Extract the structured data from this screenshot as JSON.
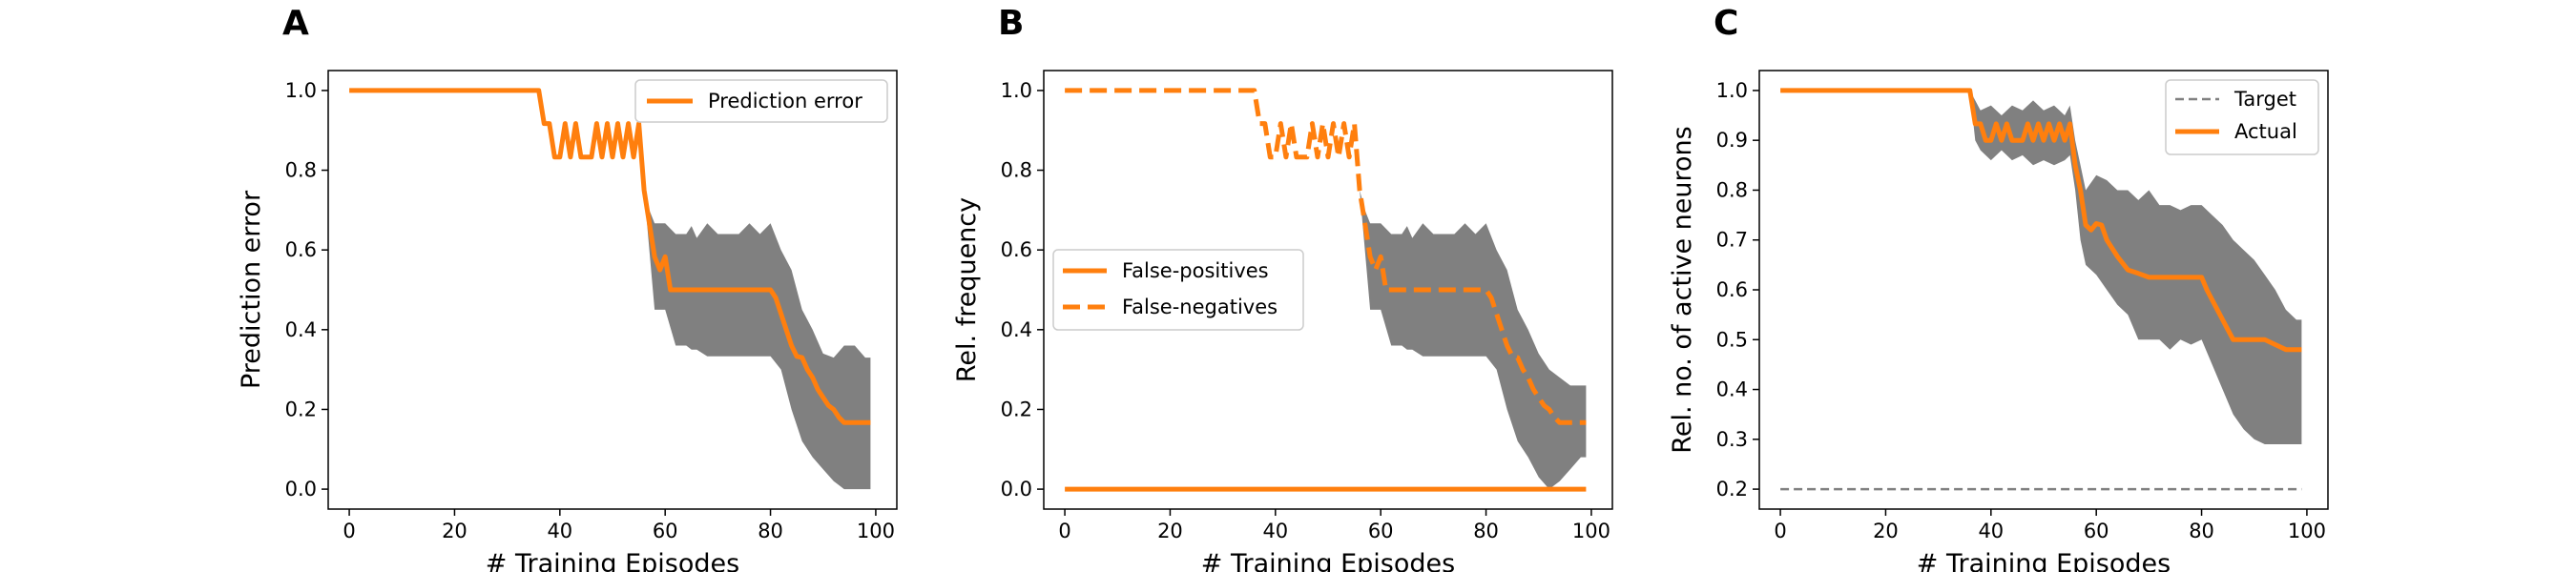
{
  "colors": {
    "orange": "#ff7f0e",
    "band": "#808080",
    "target": "#808080"
  },
  "chart_data": [
    {
      "type": "line",
      "panel": "A",
      "xlabel": "# Training Episodes",
      "ylabel": "Prediction error",
      "xlim": [
        -4,
        104
      ],
      "ylim": [
        -0.05,
        1.05
      ],
      "xticks": [
        0,
        20,
        40,
        60,
        80,
        100
      ],
      "yticks": [
        "0.0",
        "0.2",
        "0.4",
        "0.6",
        "0.8",
        "1.0"
      ],
      "legend_position": "top-right",
      "series": [
        {
          "name": "Prediction error",
          "style": "solid",
          "color": "#ff7f0e",
          "x": [
            0,
            36,
            37,
            38,
            39,
            40,
            41,
            42,
            43,
            44,
            45,
            46,
            47,
            48,
            49,
            50,
            51,
            52,
            53,
            54,
            55,
            56,
            57,
            58,
            59,
            60,
            61,
            80,
            81,
            82,
            83,
            84,
            85,
            86,
            87,
            88,
            89,
            90,
            91,
            92,
            93,
            94,
            95,
            96,
            97,
            98,
            99
          ],
          "y": [
            1.0,
            1.0,
            0.917,
            0.917,
            0.833,
            0.833,
            0.917,
            0.833,
            0.917,
            0.833,
            0.833,
            0.833,
            0.917,
            0.833,
            0.917,
            0.833,
            0.917,
            0.833,
            0.917,
            0.833,
            0.917,
            0.75,
            0.667,
            0.583,
            0.55,
            0.583,
            0.5,
            0.5,
            0.48,
            0.44,
            0.4,
            0.36,
            0.333,
            0.33,
            0.3,
            0.28,
            0.25,
            0.23,
            0.21,
            0.2,
            0.18,
            0.167,
            0.167,
            0.167,
            0.167,
            0.167,
            0.167
          ]
        }
      ],
      "band": {
        "x": [
          55,
          56,
          57,
          58,
          60,
          62,
          64,
          65,
          66,
          68,
          70,
          72,
          74,
          76,
          78,
          80,
          82,
          84,
          86,
          88,
          90,
          92,
          94,
          96,
          98,
          99
        ],
        "upper": [
          0.917,
          0.75,
          0.7,
          0.667,
          0.667,
          0.64,
          0.64,
          0.66,
          0.63,
          0.667,
          0.64,
          0.64,
          0.64,
          0.667,
          0.64,
          0.667,
          0.6,
          0.55,
          0.45,
          0.4,
          0.34,
          0.33,
          0.36,
          0.36,
          0.33,
          0.33
        ],
        "lower": [
          0.917,
          0.75,
          0.6,
          0.45,
          0.45,
          0.36,
          0.36,
          0.35,
          0.35,
          0.333,
          0.333,
          0.333,
          0.333,
          0.333,
          0.333,
          0.333,
          0.3,
          0.2,
          0.12,
          0.08,
          0.05,
          0.02,
          0.0,
          0.0,
          0.0,
          0.0
        ]
      }
    },
    {
      "type": "line",
      "panel": "B",
      "xlabel": "# Training Episodes",
      "ylabel": "Rel. frequency",
      "xlim": [
        -4,
        104
      ],
      "ylim": [
        -0.05,
        1.05
      ],
      "xticks": [
        0,
        20,
        40,
        60,
        80,
        100
      ],
      "yticks": [
        "0.0",
        "0.2",
        "0.4",
        "0.6",
        "0.8",
        "1.0"
      ],
      "legend_position": "center-left",
      "series": [
        {
          "name": "False-positives",
          "style": "solid",
          "color": "#ff7f0e",
          "x": [
            0,
            99
          ],
          "y": [
            0.0,
            0.0
          ]
        },
        {
          "name": "False-negatives",
          "style": "dashed",
          "color": "#ff7f0e",
          "x": [
            0,
            36,
            37,
            38,
            39,
            40,
            41,
            42,
            43,
            44,
            45,
            46,
            47,
            48,
            49,
            50,
            51,
            52,
            53,
            54,
            55,
            56,
            57,
            58,
            59,
            60,
            61,
            80,
            81,
            82,
            83,
            84,
            85,
            86,
            87,
            88,
            89,
            90,
            91,
            92,
            93,
            94,
            95,
            96,
            97,
            98,
            99
          ],
          "y": [
            1.0,
            1.0,
            0.917,
            0.917,
            0.833,
            0.833,
            0.917,
            0.833,
            0.917,
            0.833,
            0.833,
            0.833,
            0.917,
            0.833,
            0.917,
            0.833,
            0.917,
            0.833,
            0.917,
            0.833,
            0.917,
            0.75,
            0.667,
            0.583,
            0.55,
            0.583,
            0.5,
            0.5,
            0.48,
            0.44,
            0.4,
            0.36,
            0.333,
            0.33,
            0.3,
            0.28,
            0.25,
            0.23,
            0.21,
            0.2,
            0.18,
            0.167,
            0.167,
            0.167,
            0.167,
            0.167,
            0.167
          ]
        }
      ],
      "band": {
        "x": [
          55,
          56,
          57,
          58,
          60,
          62,
          64,
          65,
          66,
          68,
          70,
          72,
          74,
          76,
          78,
          80,
          82,
          84,
          86,
          88,
          90,
          92,
          94,
          96,
          98,
          99
        ],
        "upper": [
          0.917,
          0.75,
          0.7,
          0.667,
          0.667,
          0.64,
          0.64,
          0.66,
          0.63,
          0.667,
          0.64,
          0.64,
          0.64,
          0.667,
          0.64,
          0.667,
          0.6,
          0.55,
          0.45,
          0.4,
          0.34,
          0.3,
          0.28,
          0.26,
          0.26,
          0.26
        ],
        "lower": [
          0.917,
          0.75,
          0.6,
          0.45,
          0.45,
          0.36,
          0.36,
          0.35,
          0.35,
          0.333,
          0.333,
          0.333,
          0.333,
          0.333,
          0.333,
          0.333,
          0.3,
          0.2,
          0.12,
          0.08,
          0.03,
          0.0,
          0.02,
          0.05,
          0.08,
          0.08
        ]
      }
    },
    {
      "type": "line",
      "panel": "C",
      "xlabel": "# Training Episodes",
      "ylabel": "Rel. no. of active neurons",
      "xlim": [
        -4,
        104
      ],
      "ylim": [
        0.16,
        1.04
      ],
      "xticks": [
        0,
        20,
        40,
        60,
        80,
        100
      ],
      "yticks": [
        "0.2",
        "0.3",
        "0.4",
        "0.5",
        "0.6",
        "0.7",
        "0.8",
        "0.9",
        "1.0"
      ],
      "legend_position": "top-right",
      "series": [
        {
          "name": "Target",
          "style": "dashed-thin",
          "color": "#808080",
          "x": [
            0,
            99
          ],
          "y": [
            0.2,
            0.2
          ]
        },
        {
          "name": "Actual",
          "style": "solid",
          "color": "#ff7f0e",
          "x": [
            0,
            36,
            37,
            38,
            39,
            40,
            41,
            42,
            43,
            44,
            45,
            46,
            47,
            48,
            49,
            50,
            51,
            52,
            53,
            54,
            55,
            56,
            57,
            58,
            59,
            60,
            61,
            62,
            64,
            66,
            68,
            70,
            72,
            74,
            76,
            78,
            80,
            81,
            82,
            83,
            84,
            85,
            86,
            87,
            88,
            90,
            92,
            94,
            96,
            97,
            98,
            99
          ],
          "y": [
            1.0,
            1.0,
            0.933,
            0.933,
            0.9,
            0.9,
            0.933,
            0.9,
            0.933,
            0.9,
            0.9,
            0.9,
            0.933,
            0.9,
            0.933,
            0.9,
            0.933,
            0.9,
            0.933,
            0.9,
            0.933,
            0.85,
            0.8,
            0.73,
            0.72,
            0.733,
            0.73,
            0.7,
            0.667,
            0.64,
            0.633,
            0.625,
            0.625,
            0.625,
            0.625,
            0.625,
            0.625,
            0.6,
            0.58,
            0.56,
            0.54,
            0.52,
            0.5,
            0.5,
            0.5,
            0.5,
            0.5,
            0.49,
            0.48,
            0.48,
            0.48,
            0.48
          ]
        }
      ],
      "band": {
        "x": [
          36,
          37,
          38,
          40,
          42,
          44,
          46,
          48,
          50,
          52,
          54,
          55,
          56,
          57,
          58,
          60,
          62,
          64,
          66,
          68,
          70,
          72,
          74,
          76,
          78,
          80,
          82,
          84,
          86,
          88,
          90,
          92,
          94,
          96,
          98,
          99
        ],
        "upper": [
          1.0,
          0.98,
          0.96,
          0.97,
          0.95,
          0.97,
          0.96,
          0.98,
          0.96,
          0.97,
          0.95,
          0.97,
          0.9,
          0.85,
          0.8,
          0.83,
          0.82,
          0.8,
          0.8,
          0.78,
          0.8,
          0.77,
          0.77,
          0.76,
          0.77,
          0.77,
          0.75,
          0.73,
          0.7,
          0.68,
          0.66,
          0.63,
          0.6,
          0.56,
          0.54,
          0.54
        ],
        "lower": [
          1.0,
          0.9,
          0.88,
          0.86,
          0.88,
          0.86,
          0.87,
          0.85,
          0.86,
          0.85,
          0.86,
          0.87,
          0.8,
          0.7,
          0.65,
          0.63,
          0.6,
          0.57,
          0.55,
          0.5,
          0.5,
          0.5,
          0.48,
          0.5,
          0.49,
          0.5,
          0.45,
          0.4,
          0.35,
          0.32,
          0.3,
          0.29,
          0.29,
          0.29,
          0.29,
          0.29
        ]
      }
    }
  ]
}
